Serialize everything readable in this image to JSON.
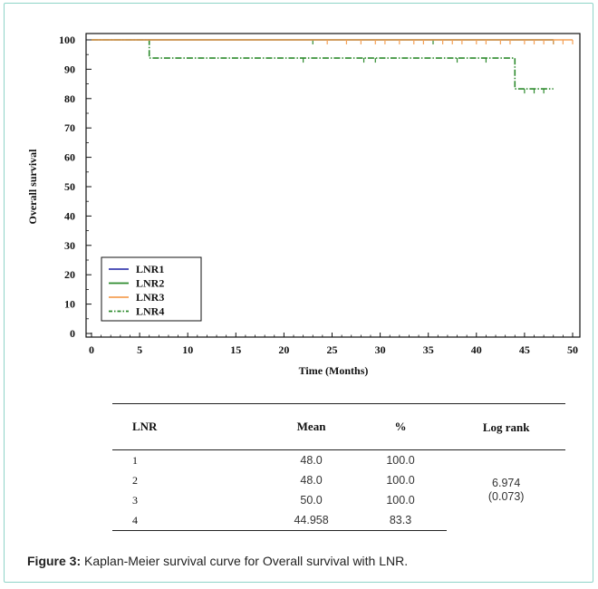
{
  "chart_data": {
    "type": "line",
    "subtype": "kaplan-meier",
    "xlabel": "Time (Months)",
    "ylabel": "Overall survival",
    "xlim": [
      0,
      50
    ],
    "ylim": [
      0,
      100
    ],
    "xticks": [
      0,
      5,
      10,
      15,
      20,
      25,
      30,
      35,
      40,
      45,
      50
    ],
    "yticks": [
      0,
      10,
      20,
      30,
      40,
      50,
      60,
      70,
      80,
      90,
      100
    ],
    "grid": false,
    "legend_position": "bottom-left",
    "series": [
      {
        "name": "LNR1",
        "color": "#3b3fb0",
        "dash": "solid",
        "steps": [
          [
            0,
            100
          ],
          [
            48,
            100
          ]
        ],
        "censors": [
          48
        ]
      },
      {
        "name": "LNR2",
        "color": "#2e8b2e",
        "dash": "solid",
        "steps": [
          [
            0,
            100
          ],
          [
            48,
            100
          ]
        ],
        "censors": [
          23,
          35.5,
          48
        ]
      },
      {
        "name": "LNR3",
        "color": "#f4a055",
        "dash": "solid",
        "steps": [
          [
            0,
            100
          ],
          [
            50,
            100
          ]
        ],
        "censors": [
          24.5,
          26.5,
          28,
          29.5,
          30.5,
          32,
          33.5,
          34.5,
          36.5,
          37.5,
          38.5,
          40,
          41,
          42.5,
          43.5,
          45,
          46,
          47,
          48,
          49,
          50
        ]
      },
      {
        "name": "LNR4",
        "color": "#2e8b2e",
        "dash": "dashdot",
        "steps": [
          [
            0,
            100
          ],
          [
            6,
            93.8
          ],
          [
            44,
            83.3
          ],
          [
            48,
            83.3
          ]
        ],
        "censors": [
          22,
          28.3,
          29.5,
          38,
          41,
          45,
          46,
          47
        ]
      }
    ]
  },
  "table": {
    "headers": [
      "LNR",
      "Mean",
      "%",
      "Log rank"
    ],
    "rows": [
      {
        "lnr": "1",
        "mean": "48.0",
        "pct": "100.0"
      },
      {
        "lnr": "2",
        "mean": "48.0",
        "pct": "100.0"
      },
      {
        "lnr": "3",
        "mean": "50.0",
        "pct": "100.0"
      },
      {
        "lnr": "4",
        "mean": "44.958",
        "pct": "83.3"
      }
    ],
    "log_rank_value": "6.974",
    "log_rank_p": "(0.073)"
  },
  "caption": {
    "label": "Figure 3:",
    "text": "Kaplan-Meier survival curve for Overall survival with LNR."
  }
}
